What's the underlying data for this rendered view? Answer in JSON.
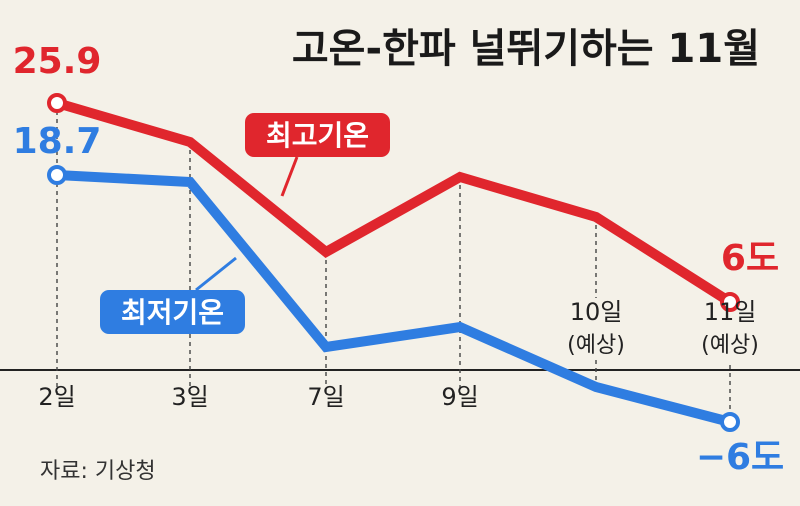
{
  "title": "고온-한파 널뛰기하는 11월",
  "source": "자료: 기상청",
  "chart_data": {
    "type": "line",
    "title": "고온-한파 널뛰기하는 11월",
    "categories": [
      "2일",
      "3일",
      "7일",
      "9일",
      "10일",
      "11일"
    ],
    "category_notes": [
      "",
      "",
      "",
      "",
      "(예상)",
      "(예상)"
    ],
    "series": [
      {
        "name": "최고기온",
        "color": "#e0262d",
        "values": [
          25.9,
          22.0,
          11.0,
          18.5,
          14.5,
          6
        ]
      },
      {
        "name": "최저기온",
        "color": "#2f7de1",
        "values": [
          18.7,
          18.0,
          1.5,
          3.5,
          -2.5,
          -6
        ]
      }
    ],
    "data_labels": [
      {
        "series": 0,
        "index": 0,
        "text": "25.9"
      },
      {
        "series": 1,
        "index": 0,
        "text": "18.7"
      },
      {
        "series": 0,
        "index": 5,
        "text": "6도"
      },
      {
        "series": 1,
        "index": 5,
        "text": "−6도"
      }
    ],
    "ylim": [
      -7,
      27
    ],
    "grid": false,
    "legend_placement": "inline labels on lines"
  }
}
